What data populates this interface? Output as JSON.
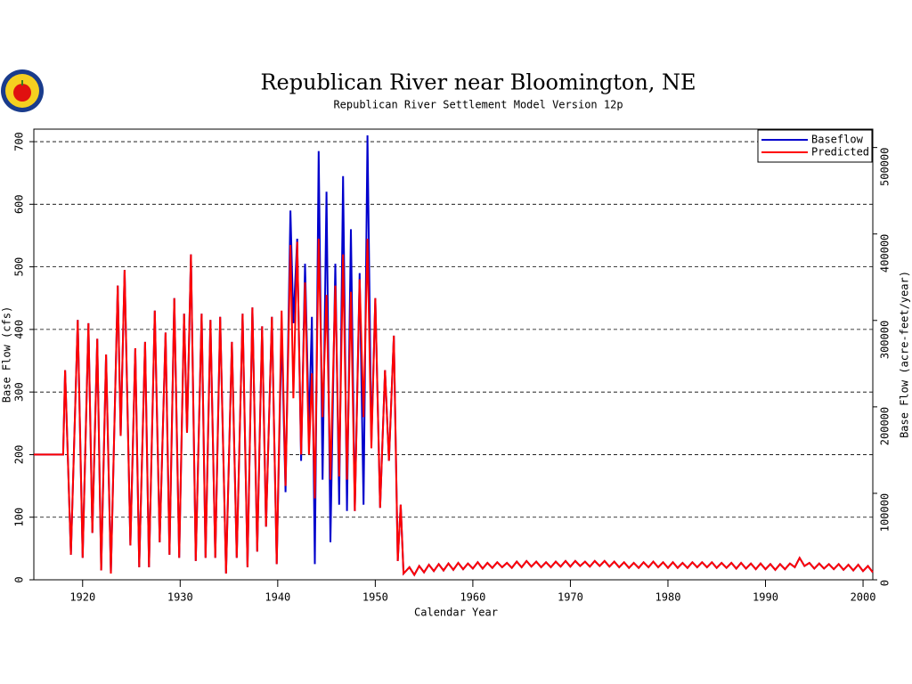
{
  "chart_data": {
    "type": "line",
    "title": "Republican River near Bloomington, NE",
    "subtitle": "Republican River Settlement Model Version 12p",
    "x_label": "Calendar Year",
    "y_label": "Base Flow (cfs)",
    "y2_label": "Base Flow (acre-feet/year)",
    "xlim": [
      1915,
      2001
    ],
    "xticks": [
      1920,
      1930,
      1940,
      1950,
      1960,
      1970,
      1980,
      1990,
      2000
    ],
    "ylim": [
      0,
      720
    ],
    "yticks": [
      0,
      100,
      200,
      300,
      400,
      500,
      600,
      700
    ],
    "y2lim": [
      0,
      521258
    ],
    "y2ticks": [
      0,
      100000,
      200000,
      300000,
      400000,
      500000
    ],
    "grid": true,
    "legend": "upper right",
    "x": [
      1915,
      1918,
      1918.2,
      1918.8,
      1919.5,
      1920,
      1920.6,
      1921,
      1921.5,
      1921.9,
      1922.4,
      1922.9,
      1923.6,
      1923.9,
      1924.3,
      1924.9,
      1925.4,
      1925.8,
      1926.4,
      1926.8,
      1927.4,
      1927.9,
      1928.5,
      1928.9,
      1929.4,
      1929.9,
      1930.4,
      1930.7,
      1931.1,
      1931.6,
      1932.2,
      1932.6,
      1933.1,
      1933.6,
      1934.1,
      1934.7,
      1935.3,
      1935.8,
      1936.4,
      1936.9,
      1937.4,
      1937.9,
      1938.4,
      1938.8,
      1939.4,
      1939.9,
      1940.4,
      1940.8,
      1941.3,
      1941.6,
      1942,
      1942.4,
      1942.8,
      1943.2,
      1943.5,
      1943.8,
      1944.2,
      1944.6,
      1945,
      1945.4,
      1945.9,
      1946.3,
      1946.7,
      1947.1,
      1947.5,
      1947.9,
      1948.4,
      1948.8,
      1949.2,
      1949.6,
      1950,
      1950.5,
      1951,
      1951.4,
      1951.9,
      1952.3,
      1952.6,
      1952.9,
      1953.5,
      1954,
      1954.5,
      1955,
      1955.5,
      1956,
      1956.5,
      1957,
      1957.5,
      1958,
      1958.5,
      1959,
      1959.5,
      1960,
      1960.5,
      1961,
      1961.5,
      1962,
      1962.5,
      1963,
      1963.5,
      1964,
      1964.5,
      1965,
      1965.5,
      1966,
      1966.5,
      1967,
      1967.5,
      1968,
      1968.5,
      1969,
      1969.5,
      1970,
      1970.5,
      1971,
      1971.5,
      1972,
      1972.5,
      1973,
      1973.5,
      1974,
      1974.5,
      1975,
      1975.5,
      1976,
      1976.5,
      1977,
      1977.5,
      1978,
      1978.5,
      1979,
      1979.5,
      1980,
      1980.5,
      1981,
      1981.5,
      1982,
      1982.5,
      1983,
      1983.5,
      1984,
      1984.5,
      1985,
      1985.5,
      1986,
      1986.5,
      1987,
      1987.5,
      1988,
      1988.5,
      1989,
      1989.5,
      1990,
      1990.5,
      1991,
      1991.5,
      1992,
      1992.5,
      1993,
      1993.5,
      1994,
      1994.5,
      1995,
      1995.5,
      1996,
      1996.5,
      1997,
      1997.5,
      1998,
      1998.5,
      1999,
      1999.5,
      2000,
      2000.5,
      2001
    ],
    "series": [
      {
        "name": "Baseflow",
        "color": "#0000cc",
        "values": [
          200,
          200,
          335,
          40,
          415,
          35,
          410,
          75,
          385,
          15,
          360,
          10,
          470,
          230,
          495,
          55,
          370,
          20,
          380,
          20,
          430,
          60,
          395,
          40,
          450,
          35,
          425,
          235,
          520,
          30,
          425,
          35,
          415,
          35,
          420,
          10,
          380,
          35,
          425,
          20,
          435,
          45,
          405,
          85,
          420,
          25,
          400,
          140,
          590,
          410,
          545,
          190,
          505,
          240,
          420,
          25,
          685,
          160,
          620,
          60,
          505,
          120,
          645,
          110,
          560,
          110,
          490,
          120,
          710,
          220,
          450,
          115,
          335,
          190,
          390,
          30,
          120,
          10,
          20,
          8,
          22,
          12,
          24,
          14,
          25,
          15,
          26,
          16,
          27,
          17,
          26,
          18,
          28,
          18,
          27,
          19,
          28,
          20,
          27,
          19,
          29,
          20,
          30,
          21,
          29,
          20,
          28,
          20,
          29,
          21,
          30,
          21,
          30,
          22,
          29,
          21,
          30,
          22,
          30,
          21,
          29,
          20,
          28,
          19,
          27,
          19,
          28,
          20,
          29,
          20,
          28,
          19,
          28,
          19,
          27,
          19,
          28,
          20,
          28,
          20,
          28,
          19,
          27,
          19,
          27,
          18,
          27,
          18,
          26,
          17,
          26,
          17,
          25,
          16,
          25,
          17,
          26,
          20,
          35,
          22,
          27,
          18,
          26,
          18,
          25,
          17,
          25,
          16,
          24,
          15,
          24,
          14,
          22,
          12
        ]
      },
      {
        "name": "Predicted",
        "color": "#ff0000",
        "values": [
          200,
          200,
          335,
          40,
          415,
          35,
          410,
          75,
          385,
          15,
          360,
          10,
          470,
          230,
          495,
          55,
          370,
          20,
          380,
          20,
          430,
          60,
          395,
          40,
          450,
          35,
          425,
          235,
          520,
          30,
          425,
          35,
          415,
          35,
          420,
          10,
          380,
          35,
          425,
          20,
          435,
          45,
          405,
          85,
          420,
          25,
          430,
          150,
          535,
          290,
          540,
          200,
          475,
          200,
          330,
          130,
          545,
          260,
          455,
          160,
          470,
          165,
          520,
          160,
          460,
          110,
          480,
          260,
          545,
          210,
          450,
          115,
          335,
          190,
          390,
          30,
          120,
          10,
          20,
          8,
          22,
          12,
          24,
          14,
          25,
          15,
          26,
          16,
          27,
          17,
          26,
          18,
          28,
          18,
          27,
          19,
          28,
          20,
          27,
          19,
          29,
          20,
          30,
          21,
          29,
          20,
          28,
          20,
          29,
          21,
          30,
          21,
          30,
          22,
          29,
          21,
          30,
          22,
          30,
          21,
          29,
          20,
          28,
          19,
          27,
          19,
          28,
          20,
          29,
          20,
          28,
          19,
          28,
          19,
          27,
          19,
          28,
          20,
          28,
          20,
          28,
          19,
          27,
          19,
          27,
          18,
          27,
          18,
          26,
          17,
          26,
          17,
          25,
          16,
          25,
          17,
          26,
          20,
          35,
          22,
          27,
          18,
          26,
          18,
          25,
          17,
          25,
          16,
          24,
          15,
          24,
          14,
          22,
          12
        ]
      }
    ]
  }
}
